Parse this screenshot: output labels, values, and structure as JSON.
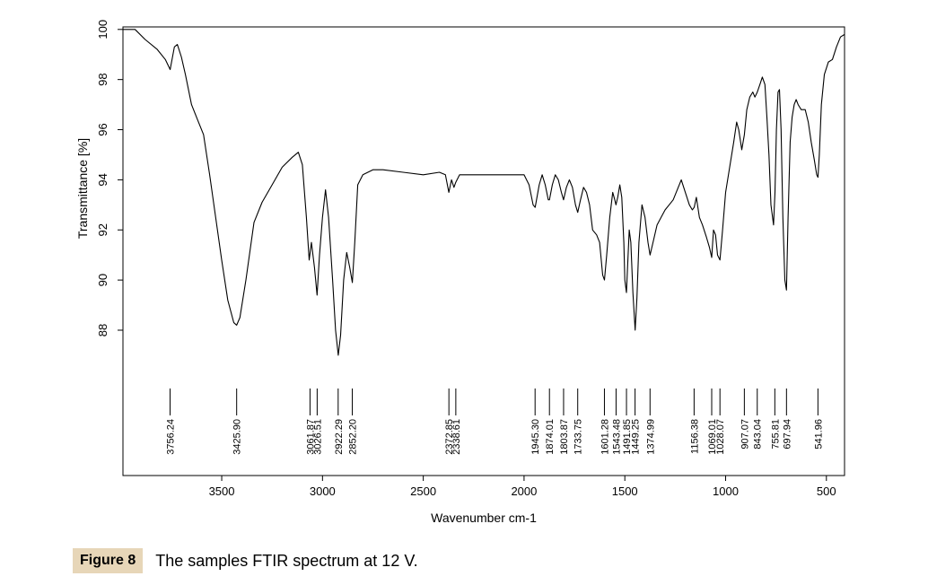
{
  "chart_data": {
    "type": "line",
    "xlabel": "Wavenumber cm-1",
    "ylabel": "Transmittance [%]",
    "xlim": [
      3990,
      410
    ],
    "ylim": [
      82.2,
      100.1
    ],
    "x_ticks": [
      3500,
      3000,
      2500,
      2000,
      1500,
      1000,
      500
    ],
    "y_ticks": [
      88,
      90,
      92,
      94,
      96,
      98,
      100
    ],
    "line_color": "#000000",
    "series": [
      {
        "points": [
          [
            3990,
            100.0
          ],
          [
            3930,
            100.0
          ],
          [
            3880,
            99.6
          ],
          [
            3820,
            99.2
          ],
          [
            3780,
            98.8
          ],
          [
            3756,
            98.4
          ],
          [
            3735,
            99.3
          ],
          [
            3720,
            99.4
          ],
          [
            3700,
            98.9
          ],
          [
            3680,
            98.2
          ],
          [
            3650,
            97.0
          ],
          [
            3620,
            96.4
          ],
          [
            3590,
            95.8
          ],
          [
            3560,
            94.2
          ],
          [
            3530,
            92.5
          ],
          [
            3500,
            90.8
          ],
          [
            3470,
            89.2
          ],
          [
            3440,
            88.3
          ],
          [
            3426,
            88.2
          ],
          [
            3410,
            88.5
          ],
          [
            3380,
            90.0
          ],
          [
            3340,
            92.3
          ],
          [
            3300,
            93.1
          ],
          [
            3250,
            93.8
          ],
          [
            3200,
            94.5
          ],
          [
            3150,
            94.9
          ],
          [
            3120,
            95.1
          ],
          [
            3100,
            94.6
          ],
          [
            3080,
            92.5
          ],
          [
            3066,
            90.8
          ],
          [
            3055,
            91.5
          ],
          [
            3040,
            90.5
          ],
          [
            3027,
            89.4
          ],
          [
            3015,
            91.0
          ],
          [
            3000,
            92.5
          ],
          [
            2985,
            93.6
          ],
          [
            2970,
            92.5
          ],
          [
            2950,
            90.0
          ],
          [
            2935,
            88.0
          ],
          [
            2922,
            87.0
          ],
          [
            2910,
            87.8
          ],
          [
            2895,
            90.0
          ],
          [
            2880,
            91.1
          ],
          [
            2865,
            90.5
          ],
          [
            2852,
            89.9
          ],
          [
            2840,
            91.5
          ],
          [
            2825,
            93.8
          ],
          [
            2800,
            94.2
          ],
          [
            2750,
            94.4
          ],
          [
            2700,
            94.4
          ],
          [
            2600,
            94.3
          ],
          [
            2500,
            94.2
          ],
          [
            2420,
            94.3
          ],
          [
            2390,
            94.2
          ],
          [
            2373,
            93.5
          ],
          [
            2360,
            94.0
          ],
          [
            2348,
            93.7
          ],
          [
            2339,
            93.9
          ],
          [
            2320,
            94.2
          ],
          [
            2250,
            94.2
          ],
          [
            2100,
            94.2
          ],
          [
            2000,
            94.2
          ],
          [
            1975,
            93.8
          ],
          [
            1955,
            93.0
          ],
          [
            1945,
            92.9
          ],
          [
            1925,
            93.8
          ],
          [
            1910,
            94.2
          ],
          [
            1895,
            93.8
          ],
          [
            1880,
            93.2
          ],
          [
            1874,
            93.2
          ],
          [
            1860,
            93.8
          ],
          [
            1845,
            94.2
          ],
          [
            1830,
            94.0
          ],
          [
            1815,
            93.5
          ],
          [
            1804,
            93.2
          ],
          [
            1790,
            93.7
          ],
          [
            1775,
            94.0
          ],
          [
            1760,
            93.7
          ],
          [
            1745,
            93.0
          ],
          [
            1734,
            92.7
          ],
          [
            1720,
            93.2
          ],
          [
            1705,
            93.7
          ],
          [
            1690,
            93.5
          ],
          [
            1675,
            93.0
          ],
          [
            1660,
            92.0
          ],
          [
            1640,
            91.8
          ],
          [
            1625,
            91.5
          ],
          [
            1610,
            90.2
          ],
          [
            1601,
            90.0
          ],
          [
            1590,
            91.0
          ],
          [
            1575,
            92.5
          ],
          [
            1560,
            93.5
          ],
          [
            1550,
            93.2
          ],
          [
            1544,
            93.0
          ],
          [
            1535,
            93.3
          ],
          [
            1525,
            93.8
          ],
          [
            1515,
            93.3
          ],
          [
            1505,
            91.5
          ],
          [
            1500,
            90.0
          ],
          [
            1492,
            89.5
          ],
          [
            1485,
            90.8
          ],
          [
            1478,
            92.0
          ],
          [
            1470,
            91.5
          ],
          [
            1460,
            89.5
          ],
          [
            1449,
            88.0
          ],
          [
            1440,
            89.3
          ],
          [
            1430,
            91.5
          ],
          [
            1415,
            93.0
          ],
          [
            1400,
            92.5
          ],
          [
            1385,
            91.5
          ],
          [
            1375,
            91.0
          ],
          [
            1360,
            91.5
          ],
          [
            1340,
            92.2
          ],
          [
            1320,
            92.5
          ],
          [
            1300,
            92.8
          ],
          [
            1280,
            93.0
          ],
          [
            1260,
            93.2
          ],
          [
            1240,
            93.6
          ],
          [
            1220,
            94.0
          ],
          [
            1200,
            93.5
          ],
          [
            1180,
            93.0
          ],
          [
            1165,
            92.8
          ],
          [
            1156,
            92.9
          ],
          [
            1145,
            93.3
          ],
          [
            1130,
            92.5
          ],
          [
            1115,
            92.2
          ],
          [
            1095,
            91.7
          ],
          [
            1080,
            91.3
          ],
          [
            1069,
            90.9
          ],
          [
            1060,
            92.0
          ],
          [
            1050,
            91.8
          ],
          [
            1040,
            91.0
          ],
          [
            1028,
            90.8
          ],
          [
            1015,
            92.0
          ],
          [
            1000,
            93.5
          ],
          [
            980,
            94.5
          ],
          [
            960,
            95.5
          ],
          [
            945,
            96.3
          ],
          [
            935,
            96.0
          ],
          [
            920,
            95.2
          ],
          [
            907,
            95.8
          ],
          [
            895,
            96.8
          ],
          [
            880,
            97.3
          ],
          [
            865,
            97.5
          ],
          [
            855,
            97.3
          ],
          [
            843,
            97.5
          ],
          [
            830,
            97.8
          ],
          [
            818,
            98.1
          ],
          [
            805,
            97.8
          ],
          [
            795,
            96.5
          ],
          [
            785,
            95.0
          ],
          [
            775,
            93.0
          ],
          [
            762,
            92.2
          ],
          [
            755,
            93.5
          ],
          [
            748,
            96.0
          ],
          [
            740,
            97.5
          ],
          [
            733,
            97.6
          ],
          [
            725,
            96.0
          ],
          [
            716,
            92.5
          ],
          [
            706,
            90.0
          ],
          [
            698,
            89.6
          ],
          [
            690,
            92.5
          ],
          [
            680,
            95.5
          ],
          [
            670,
            96.5
          ],
          [
            660,
            97.0
          ],
          [
            650,
            97.2
          ],
          [
            640,
            97.0
          ],
          [
            625,
            96.8
          ],
          [
            605,
            96.8
          ],
          [
            590,
            96.3
          ],
          [
            575,
            95.5
          ],
          [
            560,
            94.8
          ],
          [
            548,
            94.2
          ],
          [
            542,
            94.1
          ],
          [
            535,
            95.0
          ],
          [
            525,
            97.0
          ],
          [
            510,
            98.2
          ],
          [
            490,
            98.7
          ],
          [
            470,
            98.8
          ],
          [
            450,
            99.3
          ],
          [
            430,
            99.7
          ],
          [
            410,
            99.8
          ]
        ]
      }
    ],
    "peak_labels": [
      "3756.24",
      "3425.90",
      "3061.87",
      "3026.51",
      "2922.29",
      "2852.20",
      "2372.85",
      "2338.61",
      "1945.30",
      "1874.01",
      "1803.87",
      "1733.75",
      "1601.28",
      "1543.48",
      "1491.85",
      "1449.25",
      "1374.99",
      "1156.38",
      "1069.01",
      "1028.07",
      "907.07",
      "843.04",
      "755.81",
      "697.94",
      "541.96"
    ],
    "peak_positions": [
      3756.24,
      3425.9,
      3061.87,
      3026.51,
      2922.29,
      2852.2,
      2372.85,
      2338.61,
      1945.3,
      1874.01,
      1803.87,
      1733.75,
      1601.28,
      1543.48,
      1491.85,
      1449.25,
      1374.99,
      1156.38,
      1069.01,
      1028.07,
      907.07,
      843.04,
      755.81,
      697.94,
      541.96
    ]
  },
  "caption": {
    "label": "Figure 8",
    "text": "The samples FTIR spectrum at 12 V."
  }
}
